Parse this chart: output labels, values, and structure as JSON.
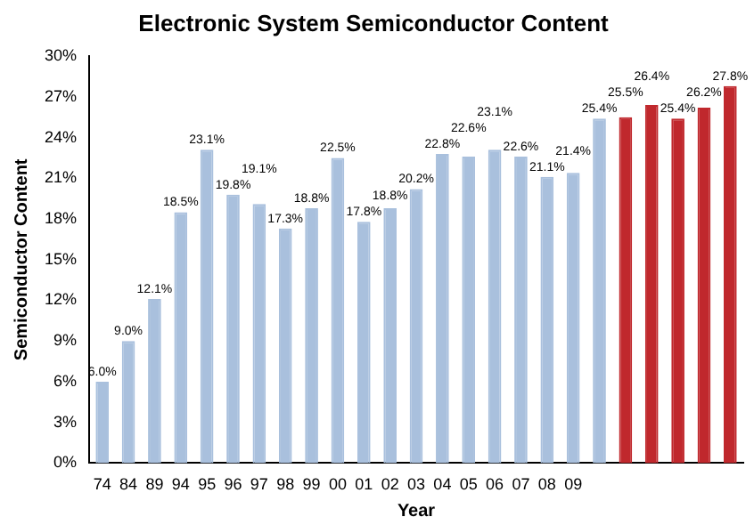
{
  "chart_data": {
    "type": "bar",
    "title": "Electronic System Semiconductor Content",
    "xlabel": "Year",
    "ylabel": "Semiconductor Content",
    "categories": [
      "74",
      "84",
      "89",
      "94",
      "95",
      "96",
      "97",
      "98",
      "99",
      "00",
      "01",
      "02",
      "03",
      "04",
      "05",
      "06",
      "07",
      "08",
      "09",
      null,
      null,
      null,
      null,
      null,
      null
    ],
    "values": [
      6.0,
      9.0,
      12.1,
      18.5,
      23.1,
      19.8,
      19.1,
      17.3,
      18.8,
      22.5,
      17.8,
      18.8,
      20.2,
      22.8,
      22.6,
      23.1,
      22.6,
      21.1,
      21.4,
      25.4,
      25.5,
      26.4,
      25.4,
      26.2,
      27.8
    ],
    "value_labels": [
      "6.0%",
      "9.0%",
      "12.1%",
      "18.5%",
      "23.1%",
      "19.8%",
      "19.1%",
      "17.3%",
      "18.8%",
      "22.5%",
      "17.8%",
      "18.8%",
      "20.2%",
      "22.8%",
      "22.6%",
      "23.1%",
      "22.6%",
      "21.1%",
      "21.4%",
      "25.4%",
      "25.5%",
      "26.4%",
      "25.4%",
      "26.2%",
      "27.8%"
    ],
    "colors": [
      "#a9c0dd",
      "#a9c0dd",
      "#a9c0dd",
      "#a9c0dd",
      "#a9c0dd",
      "#a9c0dd",
      "#a9c0dd",
      "#a9c0dd",
      "#a9c0dd",
      "#a9c0dd",
      "#a9c0dd",
      "#a9c0dd",
      "#a9c0dd",
      "#a9c0dd",
      "#a9c0dd",
      "#a9c0dd",
      "#a9c0dd",
      "#a9c0dd",
      "#a9c0dd",
      "#a9c0dd",
      "#c0282d",
      "#c0282d",
      "#c0282d",
      "#c0282d",
      "#c0282d"
    ],
    "ylim": [
      0,
      30
    ],
    "yticks": [
      {
        "value": 0,
        "label": "0%"
      },
      {
        "value": 3,
        "label": "3%"
      },
      {
        "value": 6,
        "label": "6%"
      },
      {
        "value": 9,
        "label": "9%"
      },
      {
        "value": 12,
        "label": "12%"
      },
      {
        "value": 15,
        "label": "15%"
      },
      {
        "value": 18,
        "label": "18%"
      },
      {
        "value": 21,
        "label": "21%"
      },
      {
        "value": 24,
        "label": "24%"
      },
      {
        "value": 27,
        "label": "27%"
      },
      {
        "value": 30,
        "label": "30%"
      }
    ],
    "grid": false,
    "legend": false
  }
}
